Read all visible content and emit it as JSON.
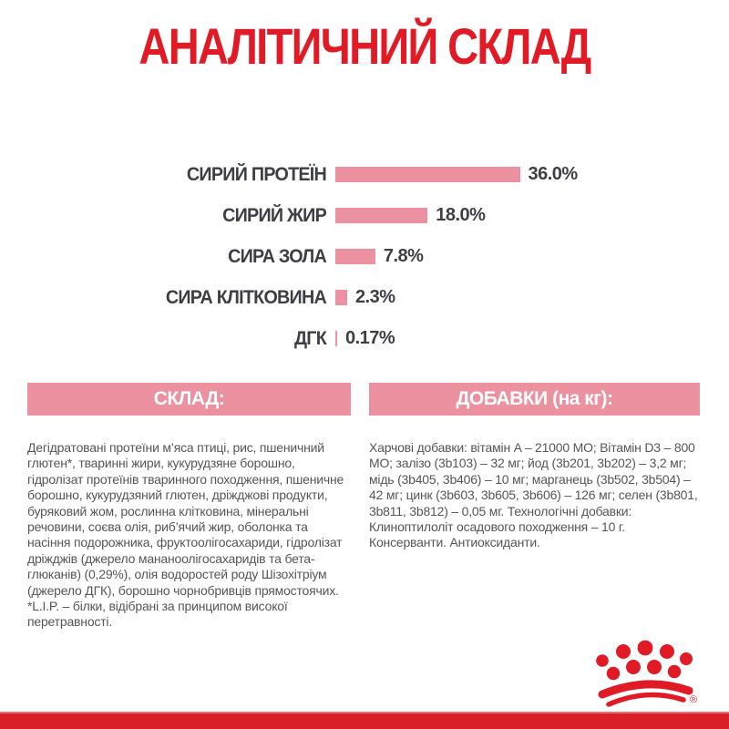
{
  "title": "АНАЛІТИЧНИЙ СКЛАД",
  "chart_data": {
    "type": "bar",
    "orientation": "horizontal",
    "title": "АНАЛІТИЧНИЙ СКЛАД",
    "categories": [
      "СИРИЙ ПРОТЕЇН",
      "СИРИЙ ЖИР",
      "СИРА ЗОЛА",
      "СИРА КЛІТКОВИНА",
      "ДГК"
    ],
    "values": [
      36.0,
      18.0,
      7.8,
      2.3,
      0.17
    ],
    "value_labels": [
      "36.0%",
      "18.0%",
      "7.8%",
      "2.3%",
      "0.17%"
    ],
    "unit": "%",
    "xlim": [
      0,
      40
    ],
    "grid": false,
    "legend": false,
    "bar_color": "#ec919f",
    "label_color": "#3e3e45"
  },
  "sections": {
    "composition": {
      "header": "СКЛАД:",
      "body": "Дегідратовані протеїни м’яса птиці, рис, пшеничний глютен*, тваринні жири, кукурудзяне борошно, гідролізат протеїнів тваринного походження, пшеничне борошно, кукурудзяний глютен, дріжджові продукти, буряковий жом, рослинна клітковина, мінеральні речовини, соєва олія, риб’ячий жир, оболонка та насіння подорожника, фруктоолігосахариди, гідролізат дріжджів (джерело мананоолігосахаридів та бета-глюканів) (0,29%), олія водоростей роду Шізохітріум (джерело ДГК), борошно чорнобривців прямостоячих.",
      "footnote": "*L.I.P. – білки, відібрані за принципом високої перетравності."
    },
    "additives": {
      "header": "ДОБАВКИ (на кг):",
      "body": "Харчові добавки: вітамін A – 21000 МО; Вітамін D3 – 800 МО; залізо (3b103) – 32 мг; йод (3b201, 3b202) – 3,2 мг; мідь (3b405, 3b406) – 10 мг; марганець (3b502, 3b504) – 42 мг; цинк (3b603, 3b605, 3b606) – 126 мг; селен (3b801, 3b811, 3b812) – 0,05 мг. Технологічні добавки: Клиноптилоліт осадового походження – 10 г. Консерванти. Антиоксиданти."
    }
  },
  "logo": {
    "name": "royal-canin-crown",
    "registered_mark": "®"
  },
  "colors": {
    "brand_red": "#e01b26",
    "bar_pink": "#ec919f",
    "header_pink": "#ec919f",
    "text_dark": "#3e3e45",
    "text_body": "#565659",
    "bottom_bar_red": "#da1f26",
    "background": "#ffffff"
  }
}
